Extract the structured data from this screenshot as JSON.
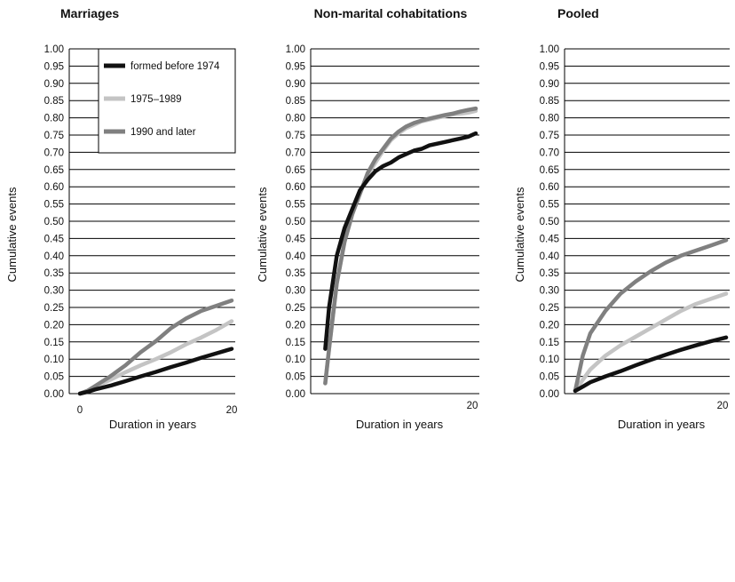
{
  "chart_data": [
    {
      "type": "line",
      "title": "Marriages",
      "xlabel": "Duration in years",
      "ylabel": "Cumulative events",
      "xlim": [
        0,
        20
      ],
      "ylim": [
        0,
        1
      ],
      "x_tick_labels": [
        "0",
        "20"
      ],
      "y_tick_labels": [
        "0.00",
        "0.05",
        "0.10",
        "0.15",
        "0.20",
        "0.25",
        "0.30",
        "0.35",
        "0.40",
        "0.45",
        "0.50",
        "0.55",
        "0.60",
        "0.65",
        "0.70",
        "0.75",
        "0.80",
        "0.85",
        "0.90",
        "0.95",
        "1.00"
      ],
      "grid": true,
      "legend": {
        "placement": "top-right",
        "entries": [
          "formed before 1974",
          "1975–1989",
          "1990 and later"
        ]
      },
      "series": [
        {
          "name": "formed before 1974",
          "color": "#111111",
          "x": [
            0,
            1,
            2,
            4,
            6,
            8,
            10,
            12,
            14,
            16,
            18,
            20
          ],
          "y": [
            0,
            0.005,
            0.012,
            0.023,
            0.036,
            0.05,
            0.063,
            0.077,
            0.09,
            0.104,
            0.117,
            0.13
          ]
        },
        {
          "name": "1975–1989",
          "color": "#c4c4c4",
          "x": [
            0,
            1,
            2,
            4,
            6,
            8,
            10,
            12,
            14,
            16,
            18,
            20
          ],
          "y": [
            0,
            0.008,
            0.02,
            0.04,
            0.062,
            0.082,
            0.1,
            0.12,
            0.143,
            0.163,
            0.185,
            0.21
          ]
        },
        {
          "name": "1990 and later",
          "color": "#808080",
          "x": [
            0,
            1,
            2,
            4,
            6,
            8,
            10,
            12,
            14,
            16,
            18,
            20
          ],
          "y": [
            0,
            0.008,
            0.022,
            0.05,
            0.082,
            0.12,
            0.152,
            0.19,
            0.218,
            0.24,
            0.255,
            0.27
          ]
        }
      ]
    },
    {
      "type": "line",
      "title": "Non-marital cohabitations",
      "xlabel": "Duration in years",
      "ylabel": "Cumulative events",
      "xlim": [
        0,
        20
      ],
      "ylim": [
        0,
        1
      ],
      "x_tick_labels": [
        "20"
      ],
      "y_tick_labels": [
        "0.00",
        "0.05",
        "0.10",
        "0.15",
        "0.20",
        "0.25",
        "0.30",
        "0.35",
        "0.40",
        "0.45",
        "0.50",
        "0.55",
        "0.60",
        "0.65",
        "0.70",
        "0.75",
        "0.80",
        "0.85",
        "0.90",
        "0.95",
        "1.00"
      ],
      "grid": true,
      "series": [
        {
          "name": "formed before 1974",
          "color": "#111111",
          "x": [
            0.5,
            1,
            2,
            3,
            4,
            5,
            6,
            7,
            8,
            9,
            10,
            11,
            12,
            13,
            14,
            15,
            16,
            17,
            18,
            19,
            20
          ],
          "y": [
            0.13,
            0.25,
            0.4,
            0.48,
            0.535,
            0.59,
            0.62,
            0.645,
            0.66,
            0.67,
            0.685,
            0.695,
            0.705,
            0.71,
            0.72,
            0.725,
            0.73,
            0.735,
            0.74,
            0.745,
            0.755
          ]
        },
        {
          "name": "1975–1989",
          "color": "#c4c4c4",
          "x": [
            0.5,
            1,
            2,
            3,
            4,
            5,
            6,
            7,
            8,
            9,
            10,
            11,
            12,
            13,
            14,
            15,
            16,
            17,
            18,
            19,
            20
          ],
          "y": [
            0.03,
            0.13,
            0.32,
            0.44,
            0.52,
            0.58,
            0.635,
            0.67,
            0.705,
            0.735,
            0.755,
            0.77,
            0.78,
            0.79,
            0.795,
            0.8,
            0.805,
            0.81,
            0.812,
            0.815,
            0.82
          ]
        },
        {
          "name": "1990 and later",
          "color": "#808080",
          "x": [
            0.5,
            1,
            2,
            3,
            4,
            5,
            6,
            7,
            8,
            9,
            10,
            11,
            12,
            13,
            14,
            15,
            16,
            17,
            18,
            19,
            20
          ],
          "y": [
            0.03,
            0.13,
            0.32,
            0.44,
            0.52,
            0.58,
            0.64,
            0.68,
            0.71,
            0.74,
            0.76,
            0.775,
            0.785,
            0.792,
            0.798,
            0.803,
            0.808,
            0.812,
            0.818,
            0.823,
            0.827
          ]
        }
      ]
    },
    {
      "type": "line",
      "title": "Pooled",
      "xlabel": "Duration in years",
      "ylabel": "Cumulative events",
      "xlim": [
        0,
        20
      ],
      "ylim": [
        0,
        1
      ],
      "x_tick_labels": [
        "20"
      ],
      "y_tick_labels": [
        "0.00",
        "0.05",
        "0.10",
        "0.15",
        "0.20",
        "0.25",
        "0.30",
        "0.35",
        "0.40",
        "0.45",
        "0.50",
        "0.55",
        "0.60",
        "0.65",
        "0.70",
        "0.75",
        "0.80",
        "0.85",
        "0.90",
        "0.95",
        "1.00"
      ],
      "grid": true,
      "series": [
        {
          "name": "formed before 1974",
          "color": "#111111",
          "x": [
            0,
            1,
            2,
            4,
            6,
            8,
            10,
            12,
            14,
            16,
            18,
            20
          ],
          "y": [
            0.008,
            0.02,
            0.033,
            0.05,
            0.065,
            0.082,
            0.098,
            0.113,
            0.127,
            0.14,
            0.152,
            0.163
          ]
        },
        {
          "name": "1975–1989",
          "color": "#c4c4c4",
          "x": [
            0,
            1,
            2,
            4,
            6,
            8,
            10,
            12,
            14,
            16,
            18,
            20
          ],
          "y": [
            0.008,
            0.04,
            0.07,
            0.11,
            0.14,
            0.165,
            0.19,
            0.215,
            0.24,
            0.26,
            0.275,
            0.29
          ]
        },
        {
          "name": "1990 and later",
          "color": "#808080",
          "x": [
            0,
            1,
            2,
            4,
            6,
            8,
            10,
            12,
            14,
            16,
            18,
            20
          ],
          "y": [
            0.008,
            0.11,
            0.175,
            0.24,
            0.29,
            0.325,
            0.355,
            0.38,
            0.4,
            0.415,
            0.43,
            0.445
          ]
        }
      ]
    }
  ]
}
